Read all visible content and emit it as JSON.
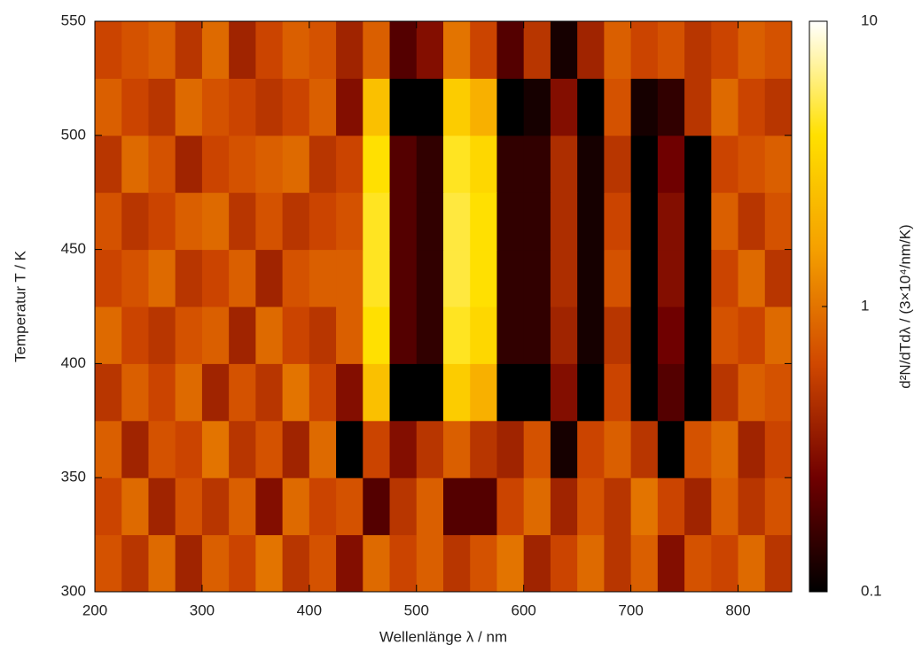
{
  "chart_data": {
    "type": "heatmap",
    "xlabel": "Wellenlänge λ  / nm",
    "ylabel": "Temperatur T / K",
    "zlabel": "d²N/dTdλ  / (3×10⁴/nm/K)",
    "xlim": [
      200,
      850
    ],
    "xticks": [
      200,
      300,
      400,
      500,
      600,
      700,
      800
    ],
    "ylim": [
      300,
      550
    ],
    "yticks": [
      300,
      350,
      400,
      450,
      500,
      550
    ],
    "zlim": [
      0.1,
      10
    ],
    "zticks": [
      0.1,
      1,
      10
    ],
    "zscale": "log",
    "colormap": [
      "#000000",
      "#700000",
      "#d04800",
      "#f5a000",
      "#ffe000",
      "#ffffff"
    ],
    "xbins": [
      200,
      225,
      250,
      275,
      300,
      325,
      350,
      375,
      400,
      425,
      450,
      475,
      500,
      525,
      550,
      575,
      600,
      625,
      650,
      675,
      700,
      725,
      750,
      775,
      800,
      825,
      850
    ],
    "ybins": [
      300,
      325,
      350,
      375,
      400,
      425,
      450,
      475,
      500,
      525,
      550
    ],
    "z": [
      [
        0.7,
        0.5,
        0.9,
        0.4,
        0.8,
        0.6,
        1,
        0.5,
        0.7,
        0.3,
        0.9,
        0.6,
        0.8,
        0.5,
        0.7,
        1,
        0.4,
        0.6,
        0.9,
        0.5,
        0.8,
        0.3,
        0.7,
        0.6,
        0.9,
        0.5
      ],
      [
        0.6,
        0.9,
        0.4,
        0.7,
        0.5,
        0.8,
        0.3,
        0.9,
        0.6,
        0.7,
        0.2,
        0.5,
        0.8,
        0.2,
        0.2,
        0.6,
        0.9,
        0.4,
        0.7,
        0.5,
        1,
        0.6,
        0.4,
        0.8,
        0.5,
        0.7
      ],
      [
        0.8,
        0.4,
        0.7,
        0.6,
        1,
        0.5,
        0.7,
        0.4,
        0.9,
        0.1,
        0.6,
        0.3,
        0.5,
        0.8,
        0.5,
        0.4,
        0.7,
        0.12,
        0.6,
        0.8,
        0.5,
        0.1,
        0.7,
        0.9,
        0.4,
        0.6
      ],
      [
        0.5,
        0.8,
        0.6,
        0.9,
        0.4,
        0.7,
        0.5,
        1,
        0.6,
        0.3,
        2.5,
        0.1,
        0.1,
        3,
        2,
        0.1,
        0.1,
        0.3,
        0.1,
        0.6,
        0.1,
        0.2,
        0.1,
        0.5,
        0.8,
        0.7
      ],
      [
        0.9,
        0.6,
        0.5,
        0.7,
        0.8,
        0.4,
        0.9,
        0.6,
        0.5,
        0.8,
        4,
        0.2,
        0.15,
        4.5,
        3.5,
        0.15,
        0.15,
        0.4,
        0.12,
        0.5,
        0.1,
        0.25,
        0.1,
        0.7,
        0.6,
        0.9
      ],
      [
        0.6,
        0.7,
        0.9,
        0.5,
        0.6,
        0.8,
        0.4,
        0.7,
        0.8,
        0.8,
        4.5,
        0.2,
        0.15,
        5,
        4,
        0.15,
        0.15,
        0.45,
        0.12,
        0.7,
        0.1,
        0.3,
        0.1,
        0.6,
        0.9,
        0.5
      ],
      [
        0.7,
        0.5,
        0.6,
        0.8,
        0.9,
        0.5,
        0.7,
        0.5,
        0.6,
        0.7,
        4.5,
        0.2,
        0.15,
        5,
        4,
        0.15,
        0.15,
        0.45,
        0.12,
        0.6,
        0.1,
        0.3,
        0.1,
        0.8,
        0.5,
        0.7
      ],
      [
        0.5,
        0.9,
        0.7,
        0.4,
        0.6,
        0.7,
        0.8,
        0.9,
        0.5,
        0.6,
        4,
        0.2,
        0.15,
        4.5,
        3.5,
        0.15,
        0.15,
        0.45,
        0.12,
        0.5,
        0.1,
        0.25,
        0.1,
        0.6,
        0.7,
        0.8
      ],
      [
        0.8,
        0.6,
        0.5,
        0.9,
        0.7,
        0.6,
        0.5,
        0.6,
        0.8,
        0.3,
        2.5,
        0.1,
        0.1,
        3,
        2,
        0.1,
        0.12,
        0.3,
        0.1,
        0.7,
        0.12,
        0.15,
        0.5,
        0.9,
        0.6,
        0.5
      ],
      [
        0.6,
        0.7,
        0.8,
        0.5,
        0.9,
        0.4,
        0.6,
        0.8,
        0.7,
        0.4,
        0.8,
        0.2,
        0.3,
        1,
        0.6,
        0.2,
        0.5,
        0.12,
        0.4,
        0.8,
        0.6,
        0.7,
        0.5,
        0.6,
        0.8,
        0.7
      ]
    ]
  }
}
